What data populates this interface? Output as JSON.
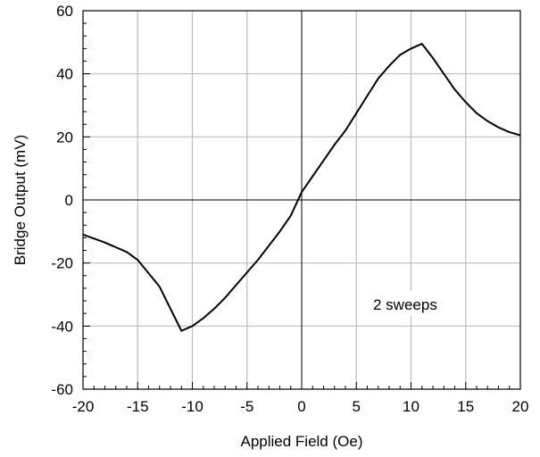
{
  "chart_data": {
    "type": "line",
    "title": "",
    "xlabel": "Applied Field (Oe)",
    "ylabel": "Bridge Output (mV)",
    "xlim": [
      -20,
      20
    ],
    "ylim": [
      -60,
      60
    ],
    "xticks": [
      -20,
      -15,
      -10,
      -5,
      0,
      5,
      10,
      15,
      20
    ],
    "yticks": [
      -60,
      -40,
      -20,
      0,
      20,
      40,
      60
    ],
    "x_tick_labels": [
      "-20",
      "-15",
      "-10",
      "-5",
      "0",
      "5",
      "10",
      "15",
      "20"
    ],
    "y_tick_labels": [
      "-60",
      "-40",
      "-20",
      "0",
      "20",
      "40",
      "60"
    ],
    "grid": true,
    "annotation": "2 sweeps",
    "line_color": "#000000",
    "grid_color": "#bdbdbd",
    "series": [
      {
        "x": [
          -20,
          -18,
          -16,
          -15,
          -13,
          -11,
          -10,
          -9,
          -8,
          -7,
          -6,
          -5,
          -4,
          -3,
          -2,
          -1,
          0,
          1,
          2,
          3,
          4,
          5,
          6,
          7,
          8,
          9,
          10,
          11,
          12,
          13,
          14,
          15,
          16,
          17,
          18,
          19,
          20
        ],
        "y": [
          -11,
          -13.5,
          -16.5,
          -19,
          -27.5,
          -41.5,
          -40,
          -37.5,
          -34.5,
          -31,
          -27,
          -23,
          -19,
          -14.5,
          -10,
          -5,
          2.5,
          7.5,
          12.5,
          17.5,
          22,
          27.5,
          33,
          38.5,
          42.5,
          46,
          48,
          49.5,
          45,
          40,
          35,
          31,
          27.5,
          25,
          23,
          21.5,
          20.5
        ]
      }
    ]
  }
}
